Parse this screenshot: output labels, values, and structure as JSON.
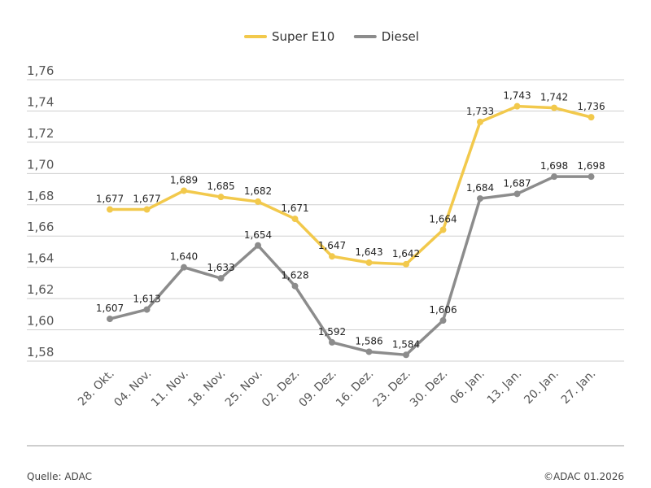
{
  "chart_data": {
    "type": "line",
    "categories": [
      "28. Okt.",
      "04. Nov.",
      "11. Nov.",
      "18. Nov.",
      "25. Nov.",
      "02. Dez.",
      "09. Dez.",
      "16. Dez.",
      "23. Dez.",
      "30. Dez.",
      "06. Jan.",
      "13. Jan.",
      "20. Jan.",
      "27. Jan."
    ],
    "series": [
      {
        "name": "Super E10",
        "color": "#f2c94c",
        "values": [
          1.677,
          1.677,
          1.689,
          1.685,
          1.682,
          1.671,
          1.647,
          1.643,
          1.642,
          1.664,
          1.733,
          1.743,
          1.742,
          1.736
        ],
        "labels": [
          "1,677",
          "1,677",
          "1,689",
          "1,685",
          "1,682",
          "1,671",
          "1,647",
          "1,643",
          "1,642",
          "1,664",
          "1,733",
          "1,743",
          "1,742",
          "1,736"
        ]
      },
      {
        "name": "Diesel",
        "color": "#8c8c8c",
        "values": [
          1.607,
          1.613,
          1.64,
          1.633,
          1.654,
          1.628,
          1.592,
          1.586,
          1.584,
          1.606,
          1.684,
          1.687,
          1.698,
          1.698
        ],
        "labels": [
          "1,607",
          "1,613",
          "1,640",
          "1,633",
          "1,654",
          "1,628",
          "1,592",
          "1,586",
          "1,584",
          "1,606",
          "1,684",
          "1,687",
          "1,698",
          "1,698"
        ]
      }
    ],
    "ylim": [
      1.58,
      1.76
    ],
    "yticks": [
      1.58,
      1.6,
      1.62,
      1.64,
      1.66,
      1.68,
      1.7,
      1.72,
      1.74,
      1.76
    ],
    "ytick_labels": [
      "1,58",
      "1,60",
      "1,62",
      "1,64",
      "1,66",
      "1,68",
      "1,70",
      "1,72",
      "1,74",
      "1,76"
    ],
    "title": "",
    "xlabel": "",
    "ylabel": "",
    "legend_position": "top-center",
    "grid": true
  },
  "footer": {
    "source": "Quelle: ADAC",
    "copyright": "©ADAC 01.2026"
  }
}
